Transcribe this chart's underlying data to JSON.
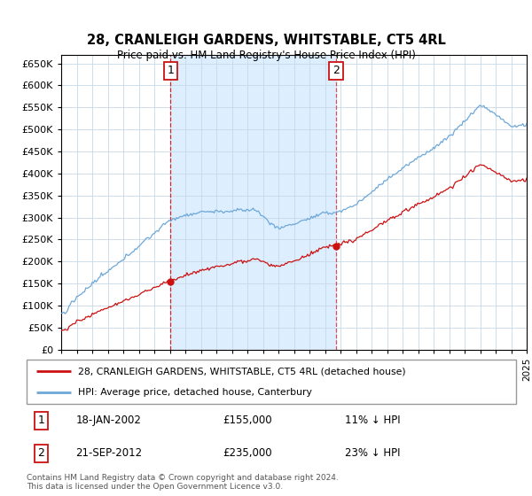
{
  "title": "28, CRANLEIGH GARDENS, WHITSTABLE, CT5 4RL",
  "subtitle": "Price paid vs. HM Land Registry's House Price Index (HPI)",
  "ylim": [
    0,
    670000
  ],
  "yticks": [
    0,
    50000,
    100000,
    150000,
    200000,
    250000,
    300000,
    350000,
    400000,
    450000,
    500000,
    550000,
    600000,
    650000
  ],
  "hpi_color": "#6ea8d8",
  "price_color": "#cc1111",
  "shade_color": "#ddeeff",
  "sale1_year": 2002.05,
  "sale1_price": 155000,
  "sale2_year": 2012.72,
  "sale2_price": 235000,
  "sale1_date": "18-JAN-2002",
  "sale1_pct": "11% ↓ HPI",
  "sale2_date": "21-SEP-2012",
  "sale2_pct": "23% ↓ HPI",
  "legend_line1": "28, CRANLEIGH GARDENS, WHITSTABLE, CT5 4RL (detached house)",
  "legend_line2": "HPI: Average price, detached house, Canterbury",
  "footnote": "Contains HM Land Registry data © Crown copyright and database right 2024.\nThis data is licensed under the Open Government Licence v3.0.",
  "xstart": 1995,
  "xend": 2025
}
